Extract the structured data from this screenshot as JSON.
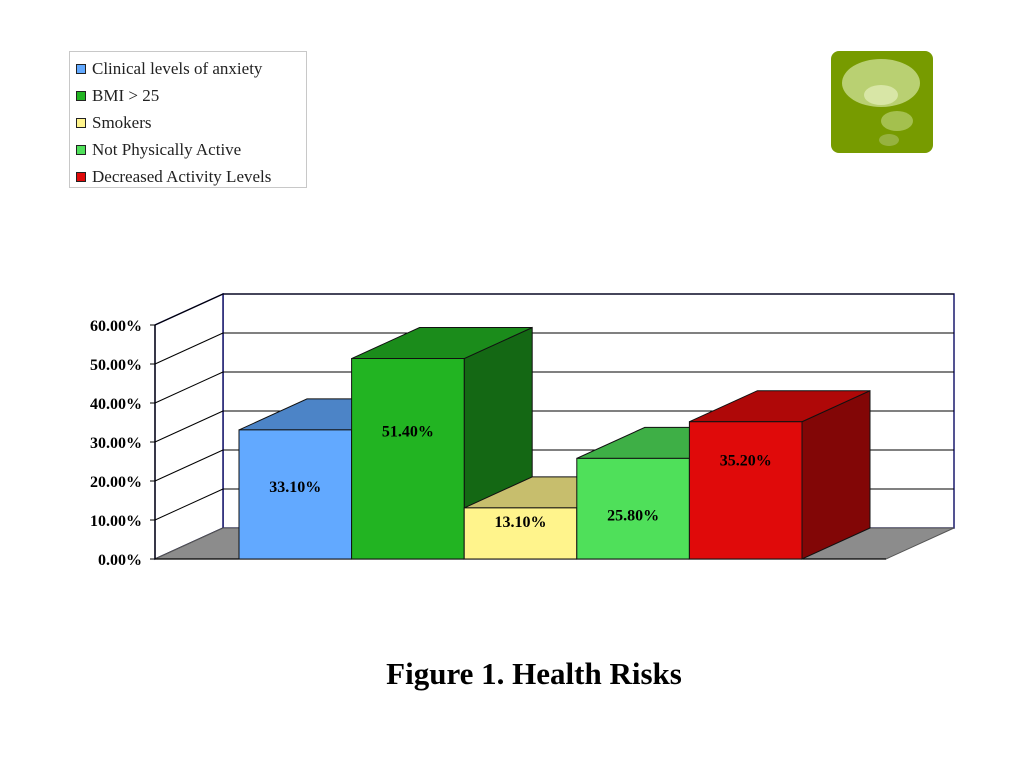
{
  "colors": {
    "clinical_anxiety": "#62a9ff",
    "bmi": "#22b422",
    "smokers": "#fff48c",
    "not_active": "#4fe05a",
    "decreased_activity": "#e00a0a",
    "floor": "#8c8c8c",
    "frame": "#1a1a6e"
  },
  "logo": {
    "icon": "thought-bubble-icon",
    "background": "#779b00"
  },
  "caption": "Figure 1. Health Risks",
  "chart_data": {
    "type": "bar",
    "title": "Figure 1. Health Risks",
    "xlabel": "",
    "ylabel": "",
    "ylim": [
      0,
      60
    ],
    "yticks": [
      "0.00%",
      "10.00%",
      "20.00%",
      "30.00%",
      "40.00%",
      "50.00%",
      "60.00%"
    ],
    "grid": true,
    "legend_position": "top-left",
    "three_d": true,
    "series": [
      {
        "name": "Clinical levels of anxiety",
        "value": 33.1,
        "label": "33.10%",
        "color_key": "clinical_anxiety"
      },
      {
        "name": "BMI > 25",
        "value": 51.4,
        "label": "51.40%",
        "color_key": "bmi"
      },
      {
        "name": "Smokers",
        "value": 13.1,
        "label": "13.10%",
        "color_key": "smokers"
      },
      {
        "name": "Not Physically Active",
        "value": 25.8,
        "label": "25.80%",
        "color_key": "not_active"
      },
      {
        "name": "Decreased Activity Levels",
        "value": 35.2,
        "label": "35.20%",
        "color_key": "decreased_activity"
      }
    ]
  }
}
